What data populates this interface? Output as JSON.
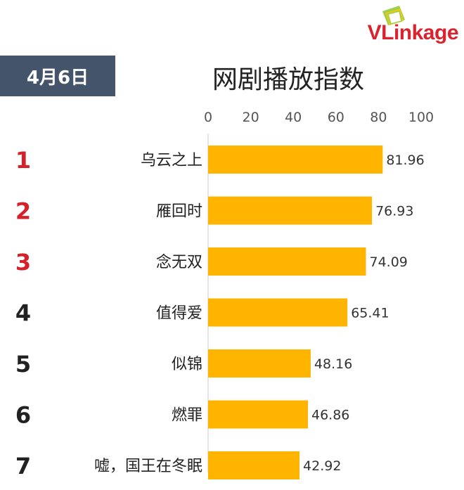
{
  "brand": {
    "name": "VLinkage"
  },
  "date_label": "4月6日",
  "chart_data": {
    "type": "bar",
    "orientation": "horizontal",
    "title": "网剧播放指数",
    "ranks": [
      "1",
      "2",
      "3",
      "4",
      "5",
      "6",
      "7"
    ],
    "categories": [
      "乌云之上",
      "雁回时",
      "念无双",
      "值得爱",
      "似锦",
      "燃罪",
      "嘘，国王在冬眠"
    ],
    "values": [
      81.96,
      76.93,
      74.09,
      65.41,
      48.16,
      46.86,
      42.92
    ],
    "value_labels": [
      "81.96",
      "76.93",
      "74.09",
      "65.41",
      "48.16",
      "46.86",
      "42.92"
    ],
    "xlim": [
      0,
      100
    ],
    "ticks": [
      0,
      20,
      40,
      60,
      80,
      100
    ],
    "tick_labels": [
      "0",
      "20",
      "40",
      "60",
      "80",
      "100"
    ],
    "grid": false,
    "axis_position": "top",
    "colors": {
      "bar": "#ffb400",
      "rank_top": "#d6212a",
      "rank_other": "#222222"
    }
  }
}
